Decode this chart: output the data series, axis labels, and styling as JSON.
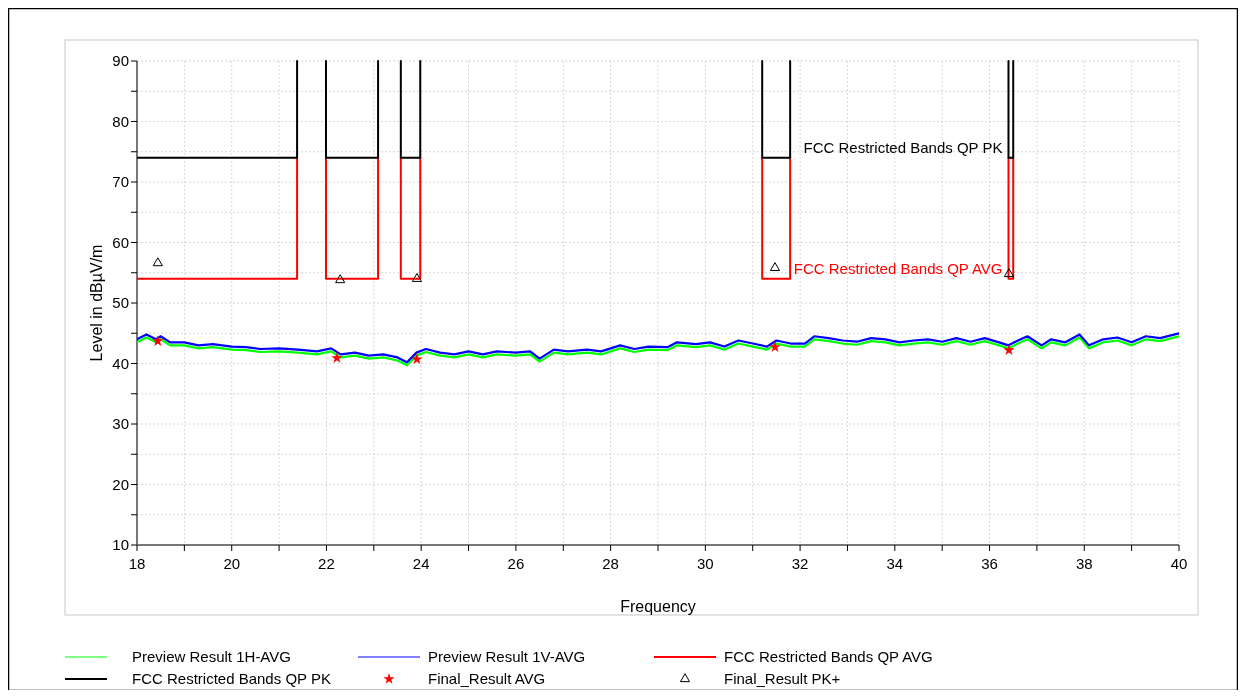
{
  "chart_data": {
    "type": "line",
    "xlabel": "Frequency",
    "ylabel": "Level in dBµV/m",
    "xlim": [
      18,
      40
    ],
    "ylim": [
      10,
      90
    ],
    "xticks": [
      18,
      {
        "value": 19,
        "label": null
      },
      20,
      {
        "value": 21,
        "label": null
      },
      22,
      {
        "value": 23,
        "label": null
      },
      24,
      {
        "value": 25,
        "label": null
      },
      26,
      {
        "value": 27,
        "label": null
      },
      28,
      {
        "value": 29,
        "label": null
      },
      30,
      {
        "value": 31,
        "label": null
      },
      32,
      {
        "value": 33,
        "label": null
      },
      34,
      {
        "value": 35,
        "label": null
      },
      36,
      {
        "value": 37,
        "label": null
      },
      38,
      {
        "value": 39,
        "label": null
      },
      40
    ],
    "yticks": [
      10,
      {
        "value": 15,
        "label": null
      },
      20,
      {
        "value": 25,
        "label": null
      },
      30,
      {
        "value": 35,
        "label": null
      },
      40,
      {
        "value": 45,
        "label": null
      },
      50,
      {
        "value": 55,
        "label": null
      },
      60,
      {
        "value": 65,
        "label": null
      },
      70,
      {
        "value": 75,
        "label": null
      },
      80,
      {
        "value": 85,
        "label": null
      },
      90
    ],
    "grid": true,
    "legend": "bottom",
    "line_style": "solid",
    "series": [
      {
        "name": "Preview Result 1H-AVG",
        "color": "#00ff00",
        "marker": "none",
        "x": [
          18,
          18.2,
          18.4,
          18.5,
          18.7,
          19,
          19.3,
          19.6,
          20,
          20.3,
          20.6,
          21,
          21.4,
          21.8,
          22.1,
          22.3,
          22.6,
          22.9,
          23.2,
          23.5,
          23.7,
          23.9,
          24.1,
          24.4,
          24.7,
          25,
          25.3,
          25.6,
          26,
          26.3,
          26.5,
          26.8,
          27.1,
          27.5,
          27.8,
          28,
          28.2,
          28.5,
          28.8,
          29.2,
          29.4,
          29.8,
          30.1,
          30.4,
          30.7,
          31,
          31.3,
          31.5,
          31.8,
          32.1,
          32.3,
          32.6,
          32.9,
          33.2,
          33.5,
          33.8,
          34.1,
          34.4,
          34.7,
          35,
          35.3,
          35.6,
          35.9,
          36.2,
          36.4,
          36.6,
          36.8,
          37.1,
          37.3,
          37.6,
          37.9,
          38.1,
          38.4,
          38.7,
          39,
          39.3,
          39.6,
          40
        ],
        "values": [
          43.5,
          44.3,
          43.5,
          44,
          43,
          43,
          42.5,
          42.7,
          42.3,
          42.2,
          41.9,
          42,
          41.8,
          41.5,
          42,
          41,
          41.3,
          40.8,
          41,
          40.5,
          39.7,
          41.3,
          41.9,
          41.3,
          41,
          41.5,
          41,
          41.5,
          41.3,
          41.5,
          40.3,
          41.8,
          41.5,
          41.8,
          41.5,
          42,
          42.5,
          41.9,
          42.3,
          42.2,
          43,
          42.7,
          43,
          42.3,
          43.3,
          42.8,
          42.3,
          43.3,
          42.8,
          42.8,
          44,
          43.7,
          43.3,
          43.1,
          43.7,
          43.5,
          43,
          43.3,
          43.5,
          43.1,
          43.7,
          43.1,
          43.7,
          43,
          42.5,
          43.3,
          44,
          42.5,
          43.5,
          43,
          44.3,
          42.5,
          43.5,
          43.8,
          43,
          44,
          43.7,
          44.5
        ]
      },
      {
        "name": "Preview Result 1V-AVG",
        "color": "#0000ff",
        "marker": "none",
        "x": [
          18,
          18.2,
          18.4,
          18.5,
          18.7,
          19,
          19.3,
          19.6,
          20,
          20.3,
          20.6,
          21,
          21.4,
          21.8,
          22.1,
          22.3,
          22.6,
          22.9,
          23.2,
          23.5,
          23.7,
          23.9,
          24.1,
          24.4,
          24.7,
          25,
          25.3,
          25.6,
          26,
          26.3,
          26.5,
          26.8,
          27.1,
          27.5,
          27.8,
          28,
          28.2,
          28.5,
          28.8,
          29.2,
          29.4,
          29.8,
          30.1,
          30.4,
          30.7,
          31,
          31.3,
          31.5,
          31.8,
          32.1,
          32.3,
          32.6,
          32.9,
          33.2,
          33.5,
          33.8,
          34.1,
          34.4,
          34.7,
          35,
          35.3,
          35.6,
          35.9,
          36.2,
          36.4,
          36.6,
          36.8,
          37.1,
          37.3,
          37.6,
          37.9,
          38.1,
          38.4,
          38.7,
          39,
          39.3,
          39.6,
          40
        ],
        "values": [
          44,
          44.8,
          44,
          44.5,
          43.5,
          43.5,
          43,
          43.2,
          42.8,
          42.7,
          42.4,
          42.5,
          42.3,
          42,
          42.5,
          41.5,
          41.8,
          41.3,
          41.5,
          41,
          40.2,
          41.8,
          42.4,
          41.8,
          41.5,
          42,
          41.5,
          42,
          41.8,
          42,
          40.8,
          42.3,
          42,
          42.3,
          42,
          42.5,
          43,
          42.4,
          42.8,
          42.7,
          43.5,
          43.2,
          43.5,
          42.8,
          43.8,
          43.3,
          42.8,
          43.8,
          43.3,
          43.3,
          44.5,
          44.2,
          43.8,
          43.6,
          44.2,
          44,
          43.5,
          43.8,
          44,
          43.6,
          44.2,
          43.6,
          44.2,
          43.5,
          43,
          43.8,
          44.5,
          43,
          44,
          43.5,
          44.8,
          43,
          44,
          44.3,
          43.5,
          44.5,
          44.2,
          45
        ]
      },
      {
        "name": "FCC Restricted Bands QP AVG",
        "color": "#ff0000",
        "marker": "none",
        "x": [
          18,
          21.38,
          21.38,
          21.7,
          21.99,
          21.99,
          23.09,
          23.09,
          23.3,
          23.57,
          23.57,
          23.98,
          23.98,
          27,
          31.2,
          31.2,
          31.79,
          31.79,
          34,
          36.4,
          36.4,
          36.5,
          36.5
        ],
        "values": [
          54,
          54,
          74,
          null,
          74,
          54,
          54,
          74,
          null,
          74,
          54,
          54,
          74,
          null,
          74,
          54,
          54,
          74,
          null,
          74,
          54,
          54,
          74
        ]
      },
      {
        "name": "FCC Restricted Bands QP PK",
        "color": "#000000",
        "marker": "none",
        "x": [
          18,
          21.38,
          21.38,
          21.7,
          21.99,
          21.99,
          23.09,
          23.09,
          23.3,
          23.57,
          23.57,
          23.98,
          23.98,
          27,
          31.2,
          31.2,
          31.79,
          31.79,
          34,
          36.4,
          36.4,
          36.5,
          36.5
        ],
        "values": [
          74,
          74,
          90,
          null,
          90,
          74,
          74,
          90,
          null,
          90,
          74,
          74,
          90,
          null,
          90,
          74,
          74,
          90,
          null,
          90,
          74,
          74,
          90
        ]
      },
      {
        "name": "Final_Result AVG",
        "color": "#ff0000",
        "type": "scatter",
        "marker": "star",
        "x": [
          18.44,
          22.22,
          23.91,
          31.47,
          36.41
        ],
        "values": [
          43.7,
          40.9,
          40.7,
          42.7,
          42.2
        ]
      },
      {
        "name": "Final_Result PK+",
        "color": "#000000",
        "type": "scatter",
        "marker": "triangle",
        "x": [
          18.44,
          22.29,
          23.91,
          31.47,
          36.41
        ],
        "values": [
          56.6,
          53.8,
          54,
          55.8,
          54.8
        ]
      }
    ],
    "annotations": [
      {
        "text": "FCC Restricted Bands QP PK",
        "x": 36.4,
        "y": 74
      },
      {
        "text": "FCC Restricted Bands QP AVG",
        "x": 36.4,
        "y": 54
      }
    ]
  }
}
